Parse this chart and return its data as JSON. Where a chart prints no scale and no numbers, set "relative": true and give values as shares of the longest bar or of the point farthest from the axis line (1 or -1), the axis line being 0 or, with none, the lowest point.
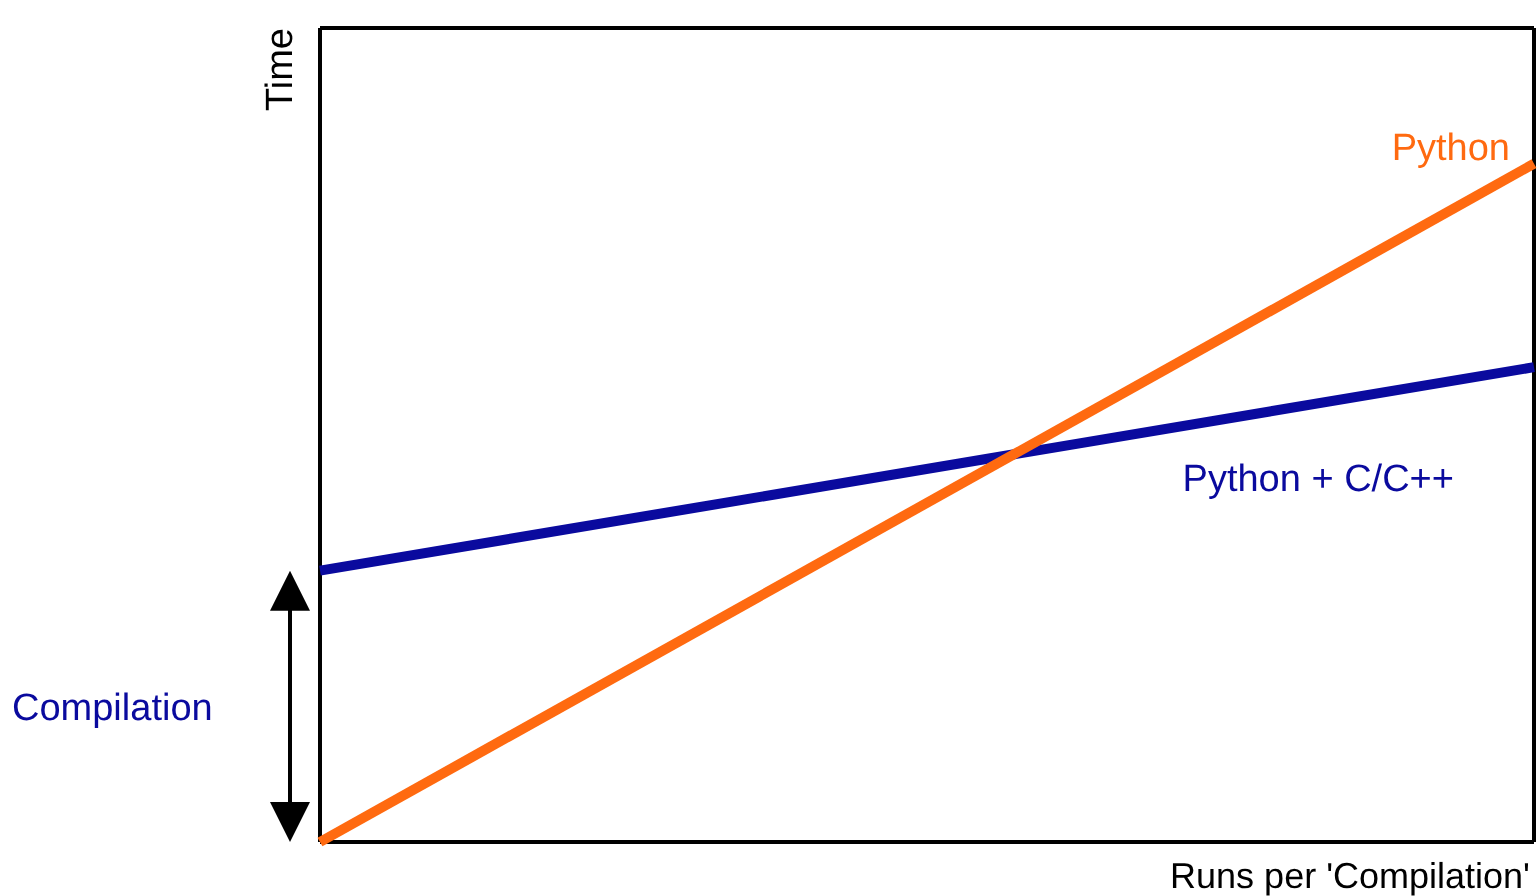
{
  "chart_data": {
    "type": "line",
    "relative": true,
    "xlabel": "Runs per 'Compilation'",
    "ylabel": "Time",
    "categories": [
      null,
      null
    ],
    "series": [
      {
        "name": "Python + C/C++",
        "color": "#0a0a9e",
        "values": [
          0.4,
          0.7
        ]
      },
      {
        "name": "Python",
        "color": "#ff6a10",
        "values": [
          0,
          1
        ]
      }
    ],
    "annotations": [
      "Compilation"
    ],
    "line_style": "solid",
    "marker": "none"
  }
}
